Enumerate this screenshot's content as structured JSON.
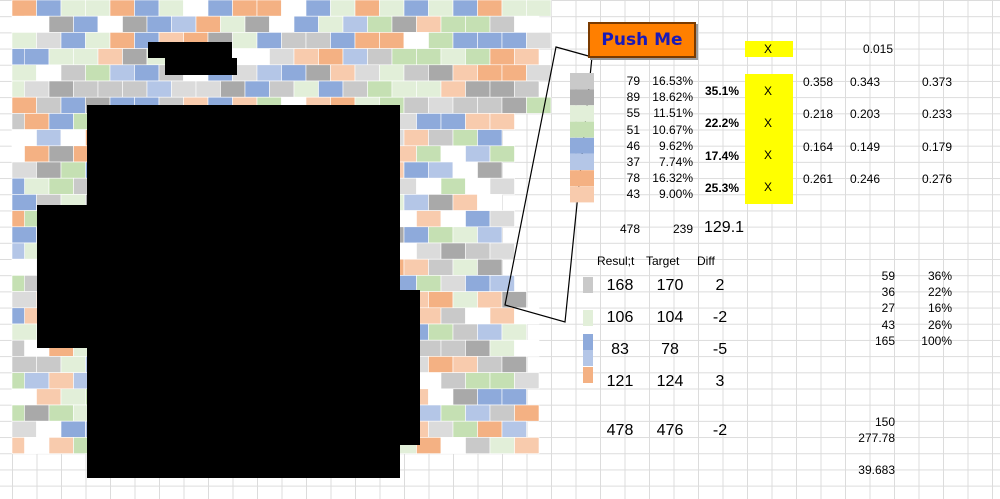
{
  "button": "Push Me",
  "marks": [
    "X",
    "X",
    "X",
    "X",
    "X"
  ],
  "top_value": "0.015",
  "counts": [
    [
      "79",
      "16.53%"
    ],
    [
      "89",
      "18.62%"
    ],
    [
      "55",
      "11.51%"
    ],
    [
      "51",
      "10.67%"
    ],
    [
      "46",
      "9.62%"
    ],
    [
      "37",
      "7.74%"
    ],
    [
      "78",
      "16.32%"
    ],
    [
      "43",
      "9.00%"
    ]
  ],
  "group_pcts": [
    "35.1%",
    "22.2%",
    "17.4%",
    "25.3%"
  ],
  "intervals": [
    [
      "0.358",
      "0.343",
      "0.373"
    ],
    [
      "0.218",
      "0.203",
      "0.233"
    ],
    [
      "0.164",
      "0.149",
      "0.179"
    ],
    [
      "0.261",
      "0.246",
      "0.276"
    ]
  ],
  "totals": [
    "478",
    "239",
    "129.1"
  ],
  "result_table": {
    "headers": [
      "Resul;t",
      "Target",
      "Diff"
    ],
    "rows": [
      [
        "168",
        "170",
        "2"
      ],
      [
        "106",
        "104",
        "-2"
      ],
      [
        "83",
        "78",
        "-5"
      ],
      [
        "121",
        "124",
        "3"
      ],
      [
        "478",
        "476",
        "-2"
      ]
    ]
  },
  "summary": [
    [
      "59",
      "36%"
    ],
    [
      "36",
      "22%"
    ],
    [
      "27",
      "16%"
    ],
    [
      "43",
      "26%"
    ],
    [
      "165",
      "100%"
    ]
  ],
  "extra": [
    "150",
    "277.78",
    "39.683"
  ]
}
